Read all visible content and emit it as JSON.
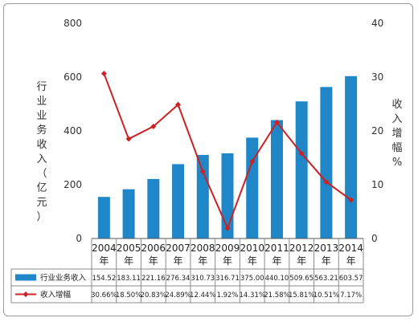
{
  "chart_data": {
    "type": "bar",
    "categories": [
      "2004年",
      "2005年",
      "2006年",
      "2007年",
      "2008年",
      "2009年",
      "2010年",
      "2011年",
      "2012年",
      "2013年",
      "2014年"
    ],
    "ylabel": "行业业务收入（亿元）",
    "y2label": "收入增幅%",
    "ylim": [
      0,
      800
    ],
    "y2lim": [
      0,
      40
    ],
    "yticks": [
      "0",
      "200",
      "400",
      "600",
      "800"
    ],
    "y2ticks": [
      "0",
      "10",
      "20",
      "30",
      "40"
    ],
    "series": [
      {
        "name": "行业业务收入",
        "type": "bar",
        "color": "#1f86c8",
        "values": [
          154.52,
          183.11,
          221.16,
          276.34,
          310.73,
          316.71,
          375.0,
          440.1,
          509.65,
          563.21,
          603.57
        ],
        "labels": [
          "154.52",
          "183.11",
          "221.16",
          "276.34",
          "310.73",
          "316.71",
          "375.00",
          "440.10",
          "509.65",
          "563.21",
          "603.57"
        ]
      },
      {
        "name": "收入增幅",
        "type": "line",
        "axis": "right",
        "color": "#cc2222",
        "values": [
          30.66,
          18.5,
          20.83,
          24.89,
          12.44,
          1.92,
          14.31,
          21.58,
          15.81,
          10.51,
          7.17
        ],
        "labels": [
          "30.66%",
          "18.50%",
          "20.83%",
          "24.89%",
          "12.44%",
          "1.92%",
          "14.31%",
          "21.58%",
          "15.81%",
          "10.51%",
          "7.17%"
        ]
      }
    ],
    "grid": false,
    "legend": "table-below"
  }
}
